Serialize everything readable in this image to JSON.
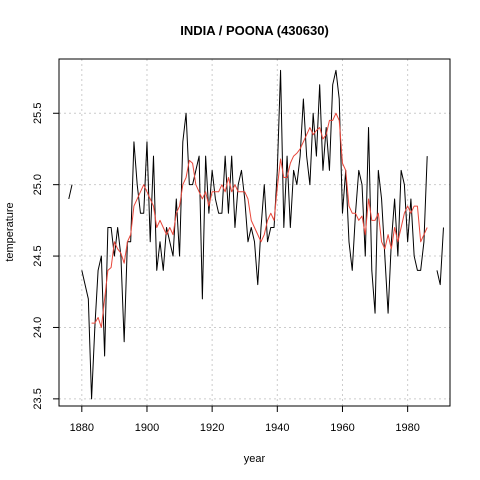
{
  "chart_data": {
    "type": "line",
    "title": "INDIA / POONA (430630)",
    "xlabel": "year",
    "ylabel": "temperature",
    "xlim": [
      1873,
      1993
    ],
    "ylim": [
      23.45,
      25.88
    ],
    "grid": true,
    "x_ticks": [
      1880,
      1900,
      1920,
      1940,
      1960,
      1980
    ],
    "y_ticks": [
      23.5,
      24.0,
      24.5,
      25.0,
      25.5
    ],
    "x_tick_labels": [
      "1880",
      "1900",
      "1920",
      "1940",
      "1960",
      "1980"
    ],
    "y_tick_labels": [
      "23.5",
      "24.0",
      "24.5",
      "25.0",
      "25.5"
    ],
    "series": [
      {
        "role": "raw",
        "color": "#000000",
        "x": [
          1876,
          1877,
          1878,
          1879,
          1880,
          1881,
          1882,
          1883,
          1884,
          1885,
          1886,
          1887,
          1888,
          1889,
          1890,
          1891,
          1892,
          1893,
          1894,
          1895,
          1896,
          1897,
          1898,
          1899,
          1900,
          1901,
          1902,
          1903,
          1904,
          1905,
          1906,
          1907,
          1908,
          1909,
          1910,
          1911,
          1912,
          1913,
          1914,
          1915,
          1916,
          1917,
          1918,
          1919,
          1920,
          1921,
          1922,
          1923,
          1924,
          1925,
          1926,
          1927,
          1928,
          1929,
          1930,
          1931,
          1932,
          1933,
          1934,
          1935,
          1936,
          1937,
          1938,
          1939,
          1940,
          1941,
          1942,
          1943,
          1944,
          1945,
          1946,
          1947,
          1948,
          1949,
          1950,
          1951,
          1952,
          1953,
          1954,
          1955,
          1956,
          1957,
          1958,
          1959,
          1960,
          1961,
          1962,
          1963,
          1964,
          1965,
          1966,
          1967,
          1968,
          1969,
          1970,
          1971,
          1972,
          1973,
          1974,
          1975,
          1976,
          1977,
          1978,
          1979,
          1980,
          1981,
          1982,
          1983,
          1984,
          1985,
          1986,
          1987,
          1988,
          1989,
          1990,
          1991
        ],
        "y": [
          24.9,
          25.0,
          null,
          null,
          24.4,
          24.3,
          24.2,
          23.5,
          24.0,
          24.4,
          24.5,
          23.8,
          24.7,
          24.7,
          24.5,
          24.7,
          24.5,
          23.9,
          24.6,
          24.6,
          25.3,
          25.0,
          24.8,
          24.8,
          25.3,
          24.6,
          25.2,
          24.4,
          24.6,
          24.4,
          24.7,
          24.6,
          24.5,
          24.9,
          24.5,
          25.3,
          25.5,
          25.0,
          25.0,
          25.1,
          25.2,
          24.2,
          25.2,
          24.8,
          25.1,
          24.9,
          24.8,
          24.8,
          25.2,
          24.8,
          25.2,
          24.7,
          25.0,
          25.1,
          24.9,
          24.6,
          24.7,
          24.6,
          24.3,
          24.7,
          25.0,
          24.6,
          24.7,
          24.7,
          25.1,
          25.8,
          24.7,
          25.2,
          24.7,
          25.1,
          25.0,
          25.2,
          25.6,
          25.2,
          25.0,
          25.5,
          25.2,
          25.7,
          25.1,
          25.4,
          25.1,
          25.7,
          25.8,
          25.6,
          24.8,
          25.1,
          24.6,
          24.4,
          24.8,
          25.1,
          25.0,
          24.5,
          25.4,
          24.4,
          24.1,
          25.1,
          24.9,
          24.5,
          24.1,
          24.6,
          24.9,
          24.5,
          25.1,
          25.0,
          24.6,
          24.9,
          24.5,
          24.4,
          24.4,
          24.6,
          25.2,
          null,
          null,
          24.4,
          24.3,
          24.7
        ]
      },
      {
        "role": "smoothed",
        "color": "#e8473b",
        "x": [
          1883,
          1884,
          1885,
          1886,
          1887,
          1888,
          1889,
          1890,
          1891,
          1892,
          1893,
          1894,
          1895,
          1896,
          1897,
          1898,
          1899,
          1900,
          1901,
          1902,
          1903,
          1904,
          1905,
          1906,
          1907,
          1908,
          1909,
          1910,
          1911,
          1912,
          1913,
          1914,
          1915,
          1916,
          1917,
          1918,
          1919,
          1920,
          1921,
          1922,
          1923,
          1924,
          1925,
          1926,
          1927,
          1928,
          1929,
          1930,
          1931,
          1932,
          1933,
          1934,
          1935,
          1936,
          1937,
          1938,
          1939,
          1940,
          1941,
          1942,
          1943,
          1944,
          1945,
          1946,
          1947,
          1948,
          1949,
          1950,
          1951,
          1952,
          1953,
          1954,
          1955,
          1956,
          1957,
          1958,
          1959,
          1960,
          1961,
          1962,
          1963,
          1964,
          1965,
          1966,
          1967,
          1968,
          1969,
          1970,
          1971,
          1972,
          1973,
          1974,
          1975,
          1976,
          1977,
          1978,
          1979,
          1980,
          1981,
          1982,
          1983,
          1984,
          1985,
          1986
        ],
        "y": [
          24.03,
          24.03,
          24.07,
          24.0,
          24.2,
          24.4,
          24.42,
          24.6,
          24.55,
          24.52,
          24.45,
          24.6,
          24.65,
          24.85,
          24.9,
          24.95,
          25.0,
          24.95,
          24.9,
          24.85,
          24.7,
          24.75,
          24.7,
          24.65,
          24.7,
          24.65,
          24.8,
          24.85,
          25.0,
          25.05,
          25.17,
          25.15,
          25.0,
          24.95,
          24.9,
          24.95,
          24.85,
          24.95,
          24.95,
          24.95,
          25.0,
          24.95,
          25.05,
          24.95,
          25.0,
          24.95,
          24.95,
          24.95,
          24.9,
          24.75,
          24.7,
          24.65,
          24.6,
          24.65,
          24.75,
          24.8,
          24.75,
          24.98,
          25.18,
          25.05,
          25.05,
          25.15,
          25.2,
          25.22,
          25.25,
          25.3,
          25.35,
          25.4,
          25.35,
          25.38,
          25.4,
          25.32,
          25.35,
          25.45,
          25.45,
          25.5,
          25.45,
          25.15,
          25.1,
          24.85,
          24.8,
          24.8,
          24.75,
          24.78,
          24.65,
          24.9,
          24.75,
          24.75,
          24.8,
          24.6,
          24.55,
          24.65,
          24.55,
          24.7,
          24.6,
          24.7,
          24.8,
          24.85,
          24.8,
          24.85,
          24.85,
          24.6,
          24.65,
          24.7
        ]
      }
    ]
  }
}
